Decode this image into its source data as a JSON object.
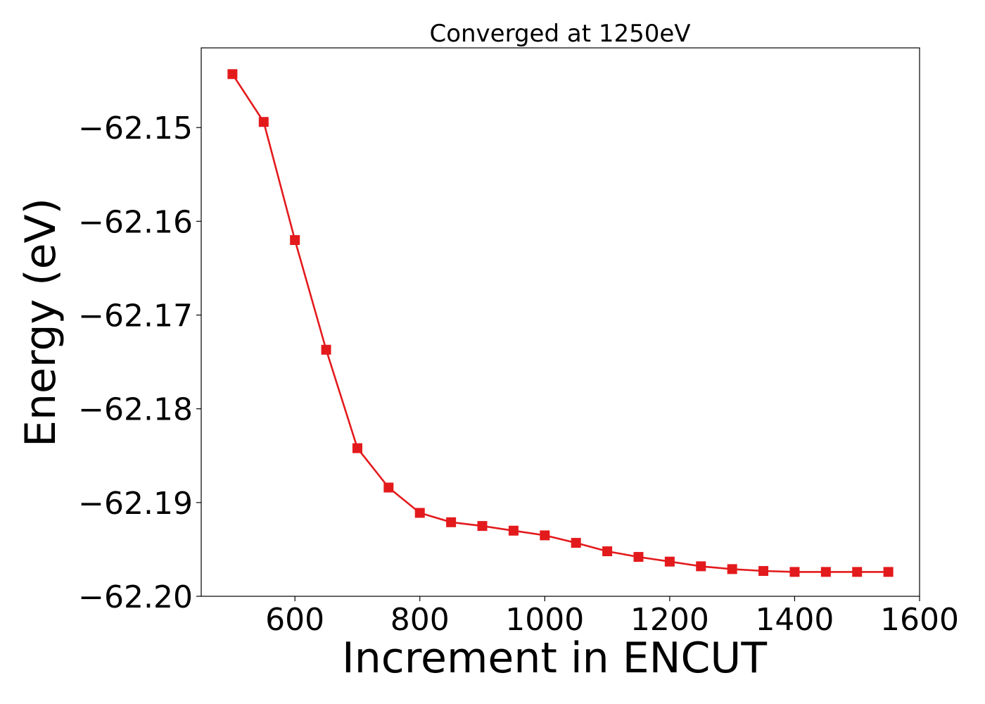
{
  "chart_data": {
    "type": "line",
    "title": "Converged at 1250eV",
    "xlabel": "Increment in ENCUT",
    "ylabel": "Energy (eV)",
    "xlim": [
      450,
      1600
    ],
    "ylim": [
      -62.2,
      -62.1415
    ],
    "x_ticks": [
      600,
      800,
      1000,
      1200,
      1400,
      1600
    ],
    "x_tick_labels": [
      "600",
      "800",
      "1000",
      "1200",
      "1400",
      "1600"
    ],
    "y_ticks": [
      -62.15,
      -62.16,
      -62.17,
      -62.18,
      -62.19,
      -62.2
    ],
    "y_tick_labels": [
      "−62.15",
      "−62.16",
      "−62.17",
      "−62.18",
      "−62.19",
      "−62.20"
    ],
    "grid": false,
    "series": [
      {
        "color": "#e31a1c",
        "marker": "square",
        "x": [
          500,
          550,
          600,
          650,
          700,
          750,
          800,
          850,
          900,
          950,
          1000,
          1050,
          1100,
          1150,
          1200,
          1250,
          1300,
          1350,
          1400,
          1450,
          1500,
          1550
        ],
        "y": [
          -62.1443,
          -62.1494,
          -62.162,
          -62.1737,
          -62.1842,
          -62.1884,
          -62.1911,
          -62.1921,
          -62.1925,
          -62.193,
          -62.1935,
          -62.1943,
          -62.1952,
          -62.1958,
          -62.1963,
          -62.1968,
          -62.1971,
          -62.1973,
          -62.1974,
          -62.1974,
          -62.1974,
          -62.1974
        ]
      }
    ]
  }
}
